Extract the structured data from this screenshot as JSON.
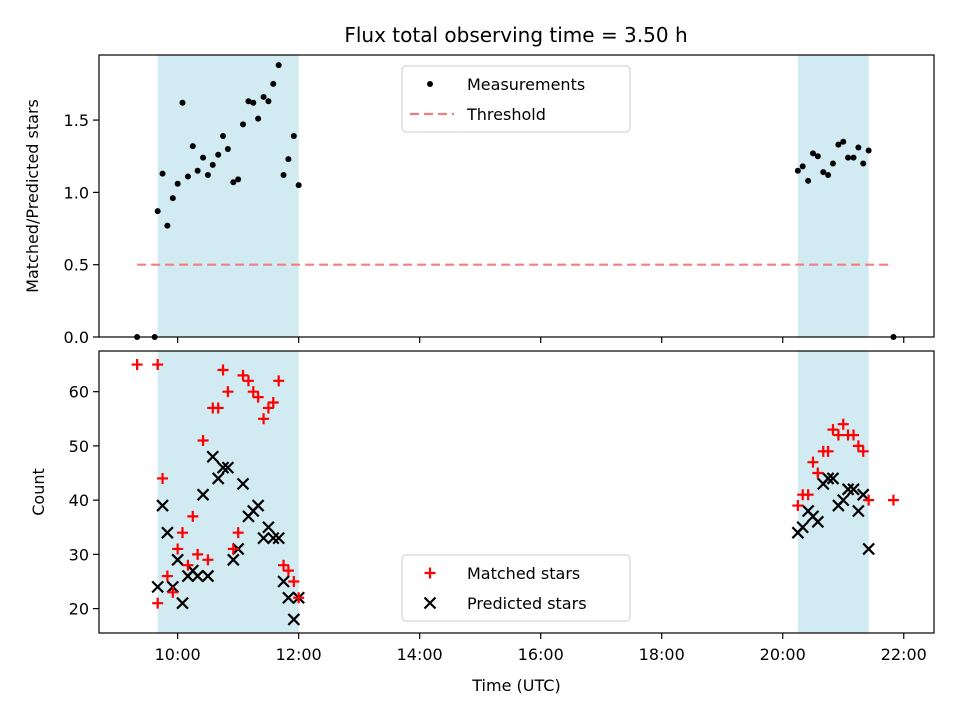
{
  "title": "Flux total observing time = 3.50 h",
  "chart_data": [
    {
      "type": "scatter",
      "ylabel": "Matched/Predicted stars",
      "xlim": [
        8.7,
        22.5
      ],
      "ylim": [
        0,
        1.95
      ],
      "yticks": [
        0.0,
        0.5,
        1.0,
        1.5
      ],
      "ytick_labels": [
        "0.0",
        "0.5",
        "1.0",
        "1.5"
      ],
      "shaded_intervals": [
        [
          9.67,
          12.0
        ],
        [
          20.25,
          21.42
        ]
      ],
      "legend": {
        "position": "top-center",
        "entries": [
          "Measurements",
          "Threshold"
        ]
      },
      "threshold": {
        "name": "Threshold",
        "value": 0.5,
        "x_range": [
          9.33,
          21.75
        ],
        "color": "#f08080"
      },
      "series": [
        {
          "name": "Measurements",
          "color": "#000000",
          "points": [
            [
              9.33,
              0.0
            ],
            [
              9.62,
              0.0
            ],
            [
              9.67,
              0.87
            ],
            [
              9.75,
              1.13
            ],
            [
              9.83,
              0.77
            ],
            [
              9.92,
              0.96
            ],
            [
              10.0,
              1.06
            ],
            [
              10.08,
              1.62
            ],
            [
              10.17,
              1.11
            ],
            [
              10.25,
              1.32
            ],
            [
              10.33,
              1.15
            ],
            [
              10.42,
              1.24
            ],
            [
              10.5,
              1.12
            ],
            [
              10.58,
              1.19
            ],
            [
              10.67,
              1.26
            ],
            [
              10.75,
              1.39
            ],
            [
              10.83,
              1.3
            ],
            [
              10.92,
              1.07
            ],
            [
              11.0,
              1.09
            ],
            [
              11.08,
              1.47
            ],
            [
              11.17,
              1.63
            ],
            [
              11.25,
              1.62
            ],
            [
              11.33,
              1.51
            ],
            [
              11.42,
              1.66
            ],
            [
              11.5,
              1.63
            ],
            [
              11.58,
              1.75
            ],
            [
              11.67,
              1.88
            ],
            [
              11.75,
              1.12
            ],
            [
              11.83,
              1.23
            ],
            [
              11.92,
              1.39
            ],
            [
              12.0,
              1.05
            ],
            [
              20.25,
              1.15
            ],
            [
              20.33,
              1.18
            ],
            [
              20.42,
              1.08
            ],
            [
              20.5,
              1.27
            ],
            [
              20.58,
              1.25
            ],
            [
              20.67,
              1.14
            ],
            [
              20.75,
              1.12
            ],
            [
              20.83,
              1.2
            ],
            [
              20.92,
              1.33
            ],
            [
              21.0,
              1.35
            ],
            [
              21.08,
              1.24
            ],
            [
              21.17,
              1.24
            ],
            [
              21.25,
              1.31
            ],
            [
              21.33,
              1.2
            ],
            [
              21.42,
              1.29
            ],
            [
              21.83,
              0.0
            ]
          ]
        }
      ]
    },
    {
      "type": "scatter",
      "ylabel": "Count",
      "xlabel": "Time (UTC)",
      "xlim": [
        8.7,
        22.5
      ],
      "ylim": [
        15.5,
        67.5
      ],
      "yticks": [
        20,
        30,
        40,
        50,
        60
      ],
      "ytick_labels": [
        "20",
        "30",
        "40",
        "50",
        "60"
      ],
      "xticks": [
        10,
        12,
        14,
        16,
        18,
        20,
        22
      ],
      "xtick_labels": [
        "10:00",
        "12:00",
        "14:00",
        "16:00",
        "18:00",
        "20:00",
        "22:00"
      ],
      "shaded_intervals": [
        [
          9.67,
          12.0
        ],
        [
          20.25,
          21.42
        ]
      ],
      "legend": {
        "position": "bottom-center",
        "entries": [
          "Matched stars",
          "Predicted stars"
        ]
      },
      "series": [
        {
          "name": "Matched stars",
          "marker": "plus",
          "color": "#ff0000",
          "points": [
            [
              9.33,
              65
            ],
            [
              9.67,
              65
            ],
            [
              9.67,
              21
            ],
            [
              9.75,
              44
            ],
            [
              9.83,
              26
            ],
            [
              9.92,
              23
            ],
            [
              10.0,
              31
            ],
            [
              10.08,
              34
            ],
            [
              10.17,
              28
            ],
            [
              10.25,
              37
            ],
            [
              10.33,
              30
            ],
            [
              10.42,
              51
            ],
            [
              10.5,
              29
            ],
            [
              10.58,
              57
            ],
            [
              10.67,
              57
            ],
            [
              10.75,
              64
            ],
            [
              10.83,
              60
            ],
            [
              10.92,
              31
            ],
            [
              11.0,
              34
            ],
            [
              11.08,
              63
            ],
            [
              11.17,
              62
            ],
            [
              11.25,
              60
            ],
            [
              11.33,
              59
            ],
            [
              11.42,
              55
            ],
            [
              11.5,
              57
            ],
            [
              11.58,
              58
            ],
            [
              11.67,
              62
            ],
            [
              11.75,
              28
            ],
            [
              11.83,
              27
            ],
            [
              11.92,
              25
            ],
            [
              12.0,
              22
            ],
            [
              20.25,
              39
            ],
            [
              20.33,
              41
            ],
            [
              20.42,
              41
            ],
            [
              20.5,
              47
            ],
            [
              20.58,
              45
            ],
            [
              20.67,
              49
            ],
            [
              20.75,
              49
            ],
            [
              20.83,
              53
            ],
            [
              20.92,
              52
            ],
            [
              21.0,
              54
            ],
            [
              21.08,
              52
            ],
            [
              21.17,
              52
            ],
            [
              21.25,
              50
            ],
            [
              21.33,
              49
            ],
            [
              21.42,
              40
            ],
            [
              21.83,
              40
            ]
          ]
        },
        {
          "name": "Predicted stars",
          "marker": "x",
          "color": "#000000",
          "points": [
            [
              9.67,
              24
            ],
            [
              9.75,
              39
            ],
            [
              9.83,
              34
            ],
            [
              9.92,
              24
            ],
            [
              10.0,
              29
            ],
            [
              10.08,
              21
            ],
            [
              10.17,
              26
            ],
            [
              10.25,
              27
            ],
            [
              10.33,
              26
            ],
            [
              10.42,
              41
            ],
            [
              10.5,
              26
            ],
            [
              10.58,
              48
            ],
            [
              10.67,
              44
            ],
            [
              10.75,
              46
            ],
            [
              10.83,
              46
            ],
            [
              10.92,
              29
            ],
            [
              11.0,
              31
            ],
            [
              11.08,
              43
            ],
            [
              11.17,
              37
            ],
            [
              11.25,
              38
            ],
            [
              11.33,
              39
            ],
            [
              11.42,
              33
            ],
            [
              11.5,
              35
            ],
            [
              11.58,
              33
            ],
            [
              11.67,
              33
            ],
            [
              11.75,
              25
            ],
            [
              11.83,
              22
            ],
            [
              11.92,
              18
            ],
            [
              12.0,
              22
            ],
            [
              20.25,
              34
            ],
            [
              20.33,
              35
            ],
            [
              20.42,
              38
            ],
            [
              20.5,
              37
            ],
            [
              20.58,
              36
            ],
            [
              20.67,
              43
            ],
            [
              20.75,
              44
            ],
            [
              20.83,
              44
            ],
            [
              20.92,
              39
            ],
            [
              21.0,
              40
            ],
            [
              21.08,
              42
            ],
            [
              21.17,
              42
            ],
            [
              21.25,
              38
            ],
            [
              21.33,
              41
            ],
            [
              21.42,
              31
            ]
          ]
        }
      ]
    }
  ],
  "colors": {
    "shade": "#add8e6",
    "matched": "#ff0000",
    "predicted": "#000000",
    "measurement": "#000000",
    "threshold": "#f08080",
    "legend_border": "#cccccc"
  }
}
